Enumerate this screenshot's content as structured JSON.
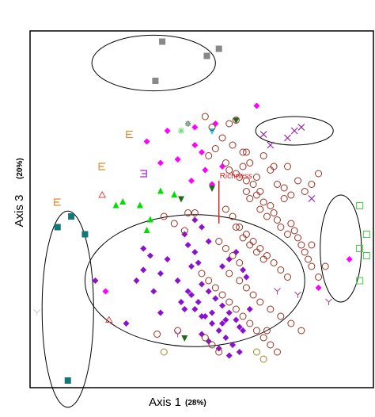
{
  "chart_data": {
    "type": "scatter",
    "xlabel": "Axis 1",
    "xlabel_pct": "(28%)",
    "ylabel": "Axis 3",
    "ylabel_pct": "(20%)",
    "xlim": [
      0,
      100
    ],
    "ylim": [
      0,
      100
    ],
    "grid": false,
    "legend": "none",
    "vector": {
      "label": "Richness",
      "color": "#dd2222",
      "from": [
        55,
        46
      ],
      "to": [
        55,
        58
      ]
    },
    "ellipses": [
      {
        "cx": 36,
        "cy": 91,
        "rx": 18,
        "ry": 7.8
      },
      {
        "cx": 77,
        "cy": 72,
        "rx": 11.3,
        "ry": 4
      },
      {
        "cx": 48,
        "cy": 30,
        "rx": 32,
        "ry": 18.5
      },
      {
        "cx": 11,
        "cy": 22,
        "rx": 7.5,
        "ry": 27.5
      },
      {
        "cx": 90.5,
        "cy": 39,
        "rx": 6,
        "ry": 15
      }
    ],
    "series": [
      {
        "marker": "square",
        "color": "#888888",
        "x": [
          38.5,
          51.5,
          55,
          36.5
        ],
        "y": [
          97,
          93,
          95,
          86
        ]
      },
      {
        "marker": "diamond",
        "color": "#ff00ff",
        "x": [
          66,
          46,
          48,
          40,
          34,
          48,
          43,
          38,
          56,
          51,
          47,
          53,
          22,
          54,
          50,
          84,
          93
        ],
        "y": [
          79,
          74,
          73,
          72,
          69,
          68,
          64,
          63,
          62,
          61,
          58,
          57,
          27,
          74,
          66,
          28,
          36
        ]
      },
      {
        "marker": "diamond",
        "color": "#8a10d2",
        "x": [
          48,
          50,
          45,
          52,
          46,
          48,
          35,
          40,
          33,
          56,
          58,
          60,
          62,
          63,
          38,
          43,
          46,
          50,
          52,
          54,
          56,
          58,
          60,
          48,
          51,
          53,
          55,
          57,
          59,
          61,
          44,
          47,
          49,
          53,
          57,
          61,
          64,
          50,
          52,
          55,
          58,
          45,
          50,
          56,
          62,
          28,
          19,
          31,
          36,
          38,
          33,
          47,
          49
        ],
        "y": [
          47,
          45,
          43,
          41,
          40,
          38,
          37,
          36,
          33,
          34,
          36,
          38,
          33,
          31,
          32,
          30,
          27,
          29,
          27,
          25,
          23,
          21,
          19,
          22,
          20,
          18,
          16,
          14,
          12,
          10,
          24,
          26,
          24,
          21,
          19,
          17,
          22,
          15,
          13,
          11,
          9,
          22,
          20,
          18,
          16,
          18,
          30,
          30,
          27,
          21,
          39,
          34,
          35
        ]
      },
      {
        "marker": "triangle",
        "color": "#00dd00",
        "x": [
          25,
          27,
          32,
          35,
          38,
          34,
          42
        ],
        "y": [
          51,
          52,
          51,
          47,
          55,
          44,
          54
        ]
      },
      {
        "marker": "triangle-down",
        "color": "#1c6a1c",
        "x": [
          60,
          44,
          53,
          45
        ],
        "y": [
          75,
          53,
          56,
          14
        ]
      },
      {
        "marker": "triangle-down",
        "color": "#22ccee",
        "x": [
          53
        ],
        "y": [
          72
        ]
      },
      {
        "marker": "circle-open",
        "color": "#993322",
        "x": [
          51,
          53,
          56,
          58,
          59,
          60,
          62,
          60,
          63,
          64,
          66,
          68,
          70,
          72,
          74,
          75,
          76,
          78,
          80,
          82,
          84,
          52,
          54,
          57,
          58,
          61,
          62,
          63,
          64,
          65,
          66,
          67,
          68,
          69,
          70,
          71,
          72,
          73,
          74,
          75,
          76,
          77,
          78,
          79,
          80,
          81,
          82,
          57,
          59,
          61,
          63,
          65,
          67,
          69,
          71,
          73,
          75,
          60,
          62,
          64,
          66,
          68,
          55,
          57,
          59,
          61,
          50,
          52,
          54,
          56,
          58,
          60,
          62,
          64,
          66,
          68,
          70,
          72,
          46,
          48,
          58,
          61,
          63,
          65,
          67,
          70,
          73,
          76,
          79,
          51,
          53,
          55,
          39,
          42,
          45,
          63,
          67,
          71,
          82,
          84,
          86,
          69,
          37,
          43
        ],
        "y": [
          76,
          73,
          70,
          74,
          68,
          75,
          62,
          60,
          58,
          63,
          59,
          65,
          61,
          57,
          56,
          62,
          54,
          58,
          55,
          57,
          60,
          65,
          67,
          63,
          61,
          59,
          66,
          55,
          53,
          57,
          54,
          50,
          52,
          48,
          51,
          49,
          47,
          45,
          53,
          43,
          46,
          44,
          42,
          40,
          38,
          36,
          34,
          50,
          48,
          45,
          43,
          41,
          39,
          37,
          35,
          33,
          31,
          45,
          42,
          40,
          38,
          36,
          41,
          39,
          37,
          35,
          32,
          30,
          28,
          26,
          24,
          22,
          20,
          18,
          16,
          14,
          12,
          10,
          49,
          49,
          32,
          30,
          28,
          26,
          24,
          22,
          20,
          18,
          16,
          14,
          12,
          10,
          48,
          46,
          44,
          66,
          55,
          62,
          40,
          31,
          34,
          16,
          15,
          16
        ]
      },
      {
        "marker": "circle-open",
        "color": "#998822",
        "x": [
          39,
          66,
          68
        ],
        "y": [
          10,
          10,
          8
        ]
      },
      {
        "marker": "x",
        "color": "#9922aa",
        "x": [
          68,
          70,
          75,
          77,
          79,
          82
        ],
        "y": [
          71,
          68,
          70,
          72,
          73,
          53
        ]
      },
      {
        "marker": "asterisk",
        "color": "#66dd66",
        "x": [
          46,
          44
        ],
        "y": [
          74,
          72
        ]
      },
      {
        "marker": "E",
        "color": "#dd8833",
        "x": [
          29,
          21,
          8
        ],
        "y": [
          71,
          62,
          52
        ]
      },
      {
        "marker": "E-rev",
        "color": "#aa22cc",
        "x": [
          33
        ],
        "y": [
          60
        ]
      },
      {
        "marker": "triangle-open",
        "color": "#dd4444",
        "x": [
          21,
          23
        ],
        "y": [
          54,
          19
        ]
      },
      {
        "marker": "square",
        "color": "#117777",
        "x": [
          8,
          12,
          16,
          11
        ],
        "y": [
          45,
          48,
          43,
          2
        ]
      },
      {
        "marker": "square-open",
        "color": "#44cc44",
        "x": [
          96,
          98,
          96,
          98,
          96
        ],
        "y": [
          51,
          43,
          39,
          37,
          30
        ]
      },
      {
        "marker": "Y",
        "color": "#cccccc",
        "x": [
          2
        ],
        "y": [
          21
        ]
      },
      {
        "marker": "Y",
        "color": "#aa4488",
        "x": [
          43,
          72,
          78,
          87
        ],
        "y": [
          15,
          27,
          26,
          24
        ]
      }
    ]
  }
}
